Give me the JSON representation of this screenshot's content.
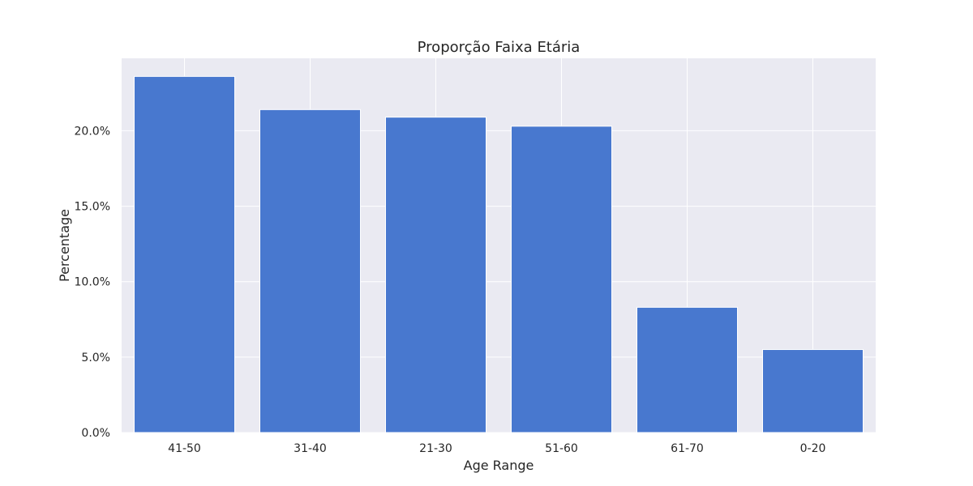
{
  "chart_data": {
    "type": "bar",
    "title": "Proporção Faixa Etária",
    "xlabel": "Age Range",
    "ylabel": "Percentage",
    "categories": [
      "41-50",
      "31-40",
      "21-30",
      "51-60",
      "61-70",
      "0-20"
    ],
    "values": [
      23.6,
      21.4,
      20.9,
      20.3,
      8.3,
      5.5
    ],
    "unit": "%",
    "ylim": [
      0,
      24.8
    ],
    "yticks": [
      0,
      5,
      10,
      15,
      20
    ],
    "ytick_labels": [
      "0.0%",
      "5.0%",
      "10.0%",
      "15.0%",
      "20.0%"
    ],
    "grid": true,
    "colors": {
      "bar": "#4878cf",
      "plot_background": "#eaeaf2",
      "grid": "#ffffff",
      "text": "#262626"
    }
  }
}
